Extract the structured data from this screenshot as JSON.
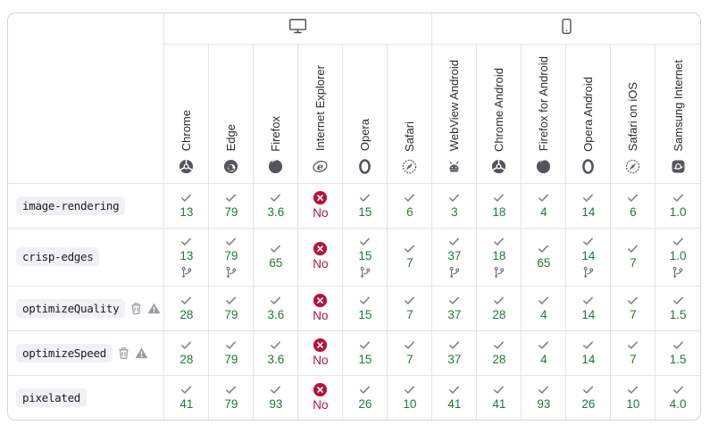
{
  "colors": {
    "green": "#1c7d32",
    "red": "#b5123d",
    "border_outer": "#d5d4de",
    "border_inner": "#e4e3ea",
    "browser_icon": "#55555f",
    "device_icon": "#4d4d55",
    "check_gray": "#82828b",
    "badge_gray": "#9b9ba5"
  },
  "groups": [
    {
      "name": "desktop",
      "icon": "desktop-icon",
      "span": 6
    },
    {
      "name": "mobile",
      "icon": "mobile-icon",
      "span": 6
    }
  ],
  "browsers": [
    {
      "label": "Chrome",
      "icon": "chrome-icon"
    },
    {
      "label": "Edge",
      "icon": "edge-icon"
    },
    {
      "label": "Firefox",
      "icon": "firefox-icon"
    },
    {
      "label": "Internet Explorer",
      "icon": "ie-icon"
    },
    {
      "label": "Opera",
      "icon": "opera-icon"
    },
    {
      "label": "Safari",
      "icon": "safari-icon"
    },
    {
      "label": "WebView Android",
      "icon": "android-icon"
    },
    {
      "label": "Chrome Android",
      "icon": "chrome-icon"
    },
    {
      "label": "Firefox for Android",
      "icon": "firefox-icon"
    },
    {
      "label": "Opera Android",
      "icon": "opera-icon"
    },
    {
      "label": "Safari on iOS",
      "icon": "safari-icon"
    },
    {
      "label": "Samsung Internet",
      "icon": "samsung-icon"
    }
  ],
  "rows": [
    {
      "feature": "image-rendering",
      "deprecated": false,
      "non_standard": false,
      "support": [
        {
          "version": "13",
          "status": "supported",
          "prefix": false
        },
        {
          "version": "79",
          "status": "supported",
          "prefix": false
        },
        {
          "version": "3.6",
          "status": "supported",
          "prefix": false
        },
        {
          "version": "No",
          "status": "unsupported",
          "prefix": false
        },
        {
          "version": "15",
          "status": "supported",
          "prefix": false
        },
        {
          "version": "6",
          "status": "supported",
          "prefix": false
        },
        {
          "version": "3",
          "status": "supported",
          "prefix": false
        },
        {
          "version": "18",
          "status": "supported",
          "prefix": false
        },
        {
          "version": "4",
          "status": "supported",
          "prefix": false
        },
        {
          "version": "14",
          "status": "supported",
          "prefix": false
        },
        {
          "version": "6",
          "status": "supported",
          "prefix": false
        },
        {
          "version": "1.0",
          "status": "supported",
          "prefix": false
        }
      ]
    },
    {
      "feature": "crisp-edges",
      "deprecated": false,
      "non_standard": false,
      "support": [
        {
          "version": "13",
          "status": "supported",
          "prefix": true
        },
        {
          "version": "79",
          "status": "supported",
          "prefix": true
        },
        {
          "version": "65",
          "status": "supported",
          "prefix": false
        },
        {
          "version": "No",
          "status": "unsupported",
          "prefix": false
        },
        {
          "version": "15",
          "status": "supported",
          "prefix": true
        },
        {
          "version": "7",
          "status": "supported",
          "prefix": false
        },
        {
          "version": "37",
          "status": "supported",
          "prefix": true
        },
        {
          "version": "18",
          "status": "supported",
          "prefix": true
        },
        {
          "version": "65",
          "status": "supported",
          "prefix": false
        },
        {
          "version": "14",
          "status": "supported",
          "prefix": true
        },
        {
          "version": "7",
          "status": "supported",
          "prefix": false
        },
        {
          "version": "1.0",
          "status": "supported",
          "prefix": true
        }
      ]
    },
    {
      "feature": "optimizeQuality",
      "deprecated": true,
      "non_standard": true,
      "support": [
        {
          "version": "28",
          "status": "supported",
          "prefix": false
        },
        {
          "version": "79",
          "status": "supported",
          "prefix": false
        },
        {
          "version": "3.6",
          "status": "supported",
          "prefix": false
        },
        {
          "version": "No",
          "status": "unsupported",
          "prefix": false
        },
        {
          "version": "15",
          "status": "supported",
          "prefix": false
        },
        {
          "version": "7",
          "status": "supported",
          "prefix": false
        },
        {
          "version": "37",
          "status": "supported",
          "prefix": false
        },
        {
          "version": "28",
          "status": "supported",
          "prefix": false
        },
        {
          "version": "4",
          "status": "supported",
          "prefix": false
        },
        {
          "version": "14",
          "status": "supported",
          "prefix": false
        },
        {
          "version": "7",
          "status": "supported",
          "prefix": false
        },
        {
          "version": "1.5",
          "status": "supported",
          "prefix": false
        }
      ]
    },
    {
      "feature": "optimizeSpeed",
      "deprecated": true,
      "non_standard": true,
      "support": [
        {
          "version": "28",
          "status": "supported",
          "prefix": false
        },
        {
          "version": "79",
          "status": "supported",
          "prefix": false
        },
        {
          "version": "3.6",
          "status": "supported",
          "prefix": false
        },
        {
          "version": "No",
          "status": "unsupported",
          "prefix": false
        },
        {
          "version": "15",
          "status": "supported",
          "prefix": false
        },
        {
          "version": "7",
          "status": "supported",
          "prefix": false
        },
        {
          "version": "37",
          "status": "supported",
          "prefix": false
        },
        {
          "version": "28",
          "status": "supported",
          "prefix": false
        },
        {
          "version": "4",
          "status": "supported",
          "prefix": false
        },
        {
          "version": "14",
          "status": "supported",
          "prefix": false
        },
        {
          "version": "7",
          "status": "supported",
          "prefix": false
        },
        {
          "version": "1.5",
          "status": "supported",
          "prefix": false
        }
      ]
    },
    {
      "feature": "pixelated",
      "deprecated": false,
      "non_standard": false,
      "support": [
        {
          "version": "41",
          "status": "supported",
          "prefix": false
        },
        {
          "version": "79",
          "status": "supported",
          "prefix": false
        },
        {
          "version": "93",
          "status": "supported",
          "prefix": false
        },
        {
          "version": "No",
          "status": "unsupported",
          "prefix": false
        },
        {
          "version": "26",
          "status": "supported",
          "prefix": false
        },
        {
          "version": "10",
          "status": "supported",
          "prefix": false
        },
        {
          "version": "41",
          "status": "supported",
          "prefix": false
        },
        {
          "version": "41",
          "status": "supported",
          "prefix": false
        },
        {
          "version": "93",
          "status": "supported",
          "prefix": false
        },
        {
          "version": "26",
          "status": "supported",
          "prefix": false
        },
        {
          "version": "10",
          "status": "supported",
          "prefix": false
        },
        {
          "version": "4.0",
          "status": "supported",
          "prefix": false
        }
      ]
    }
  ]
}
